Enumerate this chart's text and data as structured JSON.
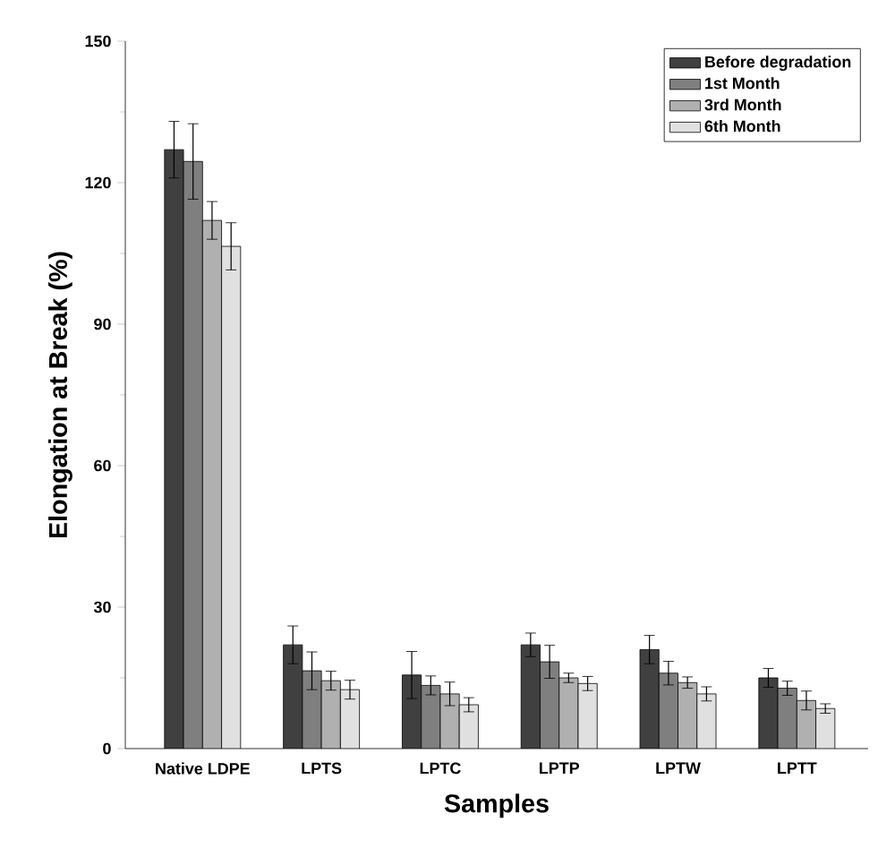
{
  "chart_data": {
    "type": "bar",
    "xlabel": "Samples",
    "ylabel": "Elongation at Break (%)",
    "categories": [
      "Native LDPE",
      "LPTS",
      "LPTC",
      "LPTP",
      "LPTW",
      "LPTT"
    ],
    "series": [
      {
        "name": "Before degradation",
        "color": "#404040",
        "values": [
          127,
          22,
          15.6,
          22,
          21,
          15
        ],
        "errors": [
          6,
          4,
          5,
          2.5,
          3,
          2
        ]
      },
      {
        "name": "1st Month",
        "color": "#7f7f7f",
        "values": [
          124.5,
          16.5,
          13.4,
          18.4,
          16,
          12.8
        ],
        "errors": [
          8,
          4,
          2,
          3.5,
          2.5,
          1.5
        ]
      },
      {
        "name": "3rd Month",
        "color": "#b0b0b0",
        "values": [
          112,
          14.4,
          11.6,
          15,
          14,
          10.2
        ],
        "errors": [
          4,
          2,
          2.5,
          1,
          1.2,
          2
        ]
      },
      {
        "name": "6th Month",
        "color": "#e0e0e0",
        "values": [
          106.5,
          12.5,
          9.3,
          13.8,
          11.6,
          8.5
        ],
        "errors": [
          5,
          2,
          1.5,
          1.5,
          1.5,
          1
        ]
      }
    ],
    "ylim": [
      0,
      150
    ],
    "yticks": [
      0,
      30,
      60,
      90,
      120,
      150
    ],
    "legend": "top right"
  }
}
